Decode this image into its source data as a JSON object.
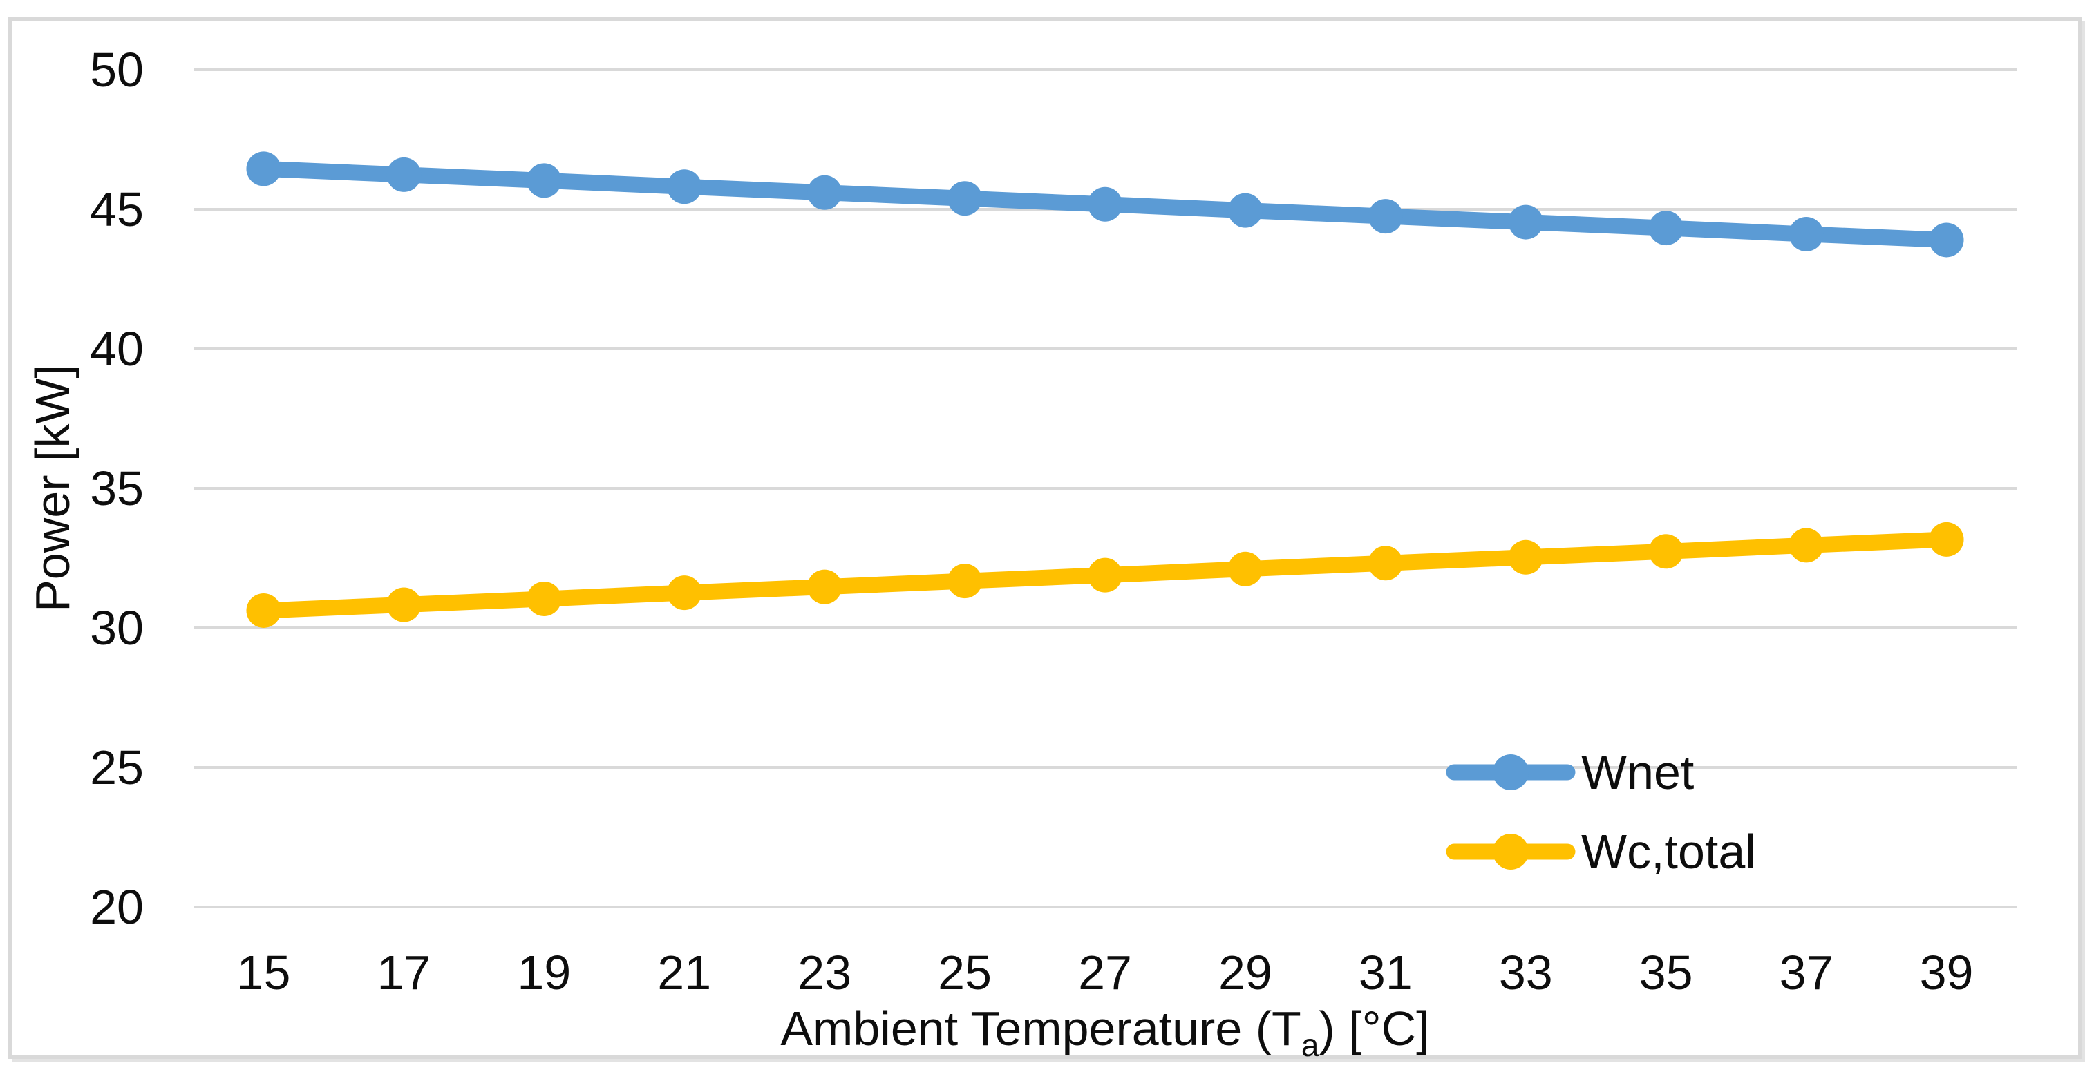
{
  "chart_data": {
    "type": "line",
    "title": "",
    "xlabel": "Ambient Temperature (Ta) [°C]",
    "xlabel_parts": {
      "pre": "Ambient Temperature (T",
      "sub": "a",
      "post": ") [°C]"
    },
    "ylabel": "Power [kW]",
    "x_categories": [
      "15",
      "17",
      "19",
      "21",
      "23",
      "25",
      "27",
      "29",
      "31",
      "33",
      "35",
      "37",
      "39"
    ],
    "y_ticks": [
      50,
      45,
      40,
      35,
      30,
      25,
      20
    ],
    "ylim": [
      20,
      50
    ],
    "grid": "horizontal-only",
    "legend_position": "inside-bottom-right",
    "marker": "circle",
    "series": [
      {
        "name": "Wnet",
        "color": "#5B9BD5",
        "values": [
          46.45,
          46.24,
          46.03,
          45.81,
          45.6,
          45.39,
          45.18,
          44.96,
          44.75,
          44.54,
          44.33,
          44.11,
          43.9
        ]
      },
      {
        "name": "Wc,total",
        "color": "#FFC000",
        "values": [
          30.62,
          30.83,
          31.04,
          31.26,
          31.47,
          31.68,
          31.89,
          32.11,
          32.32,
          32.53,
          32.74,
          32.96,
          33.17
        ]
      }
    ],
    "colors": {
      "gridline": "#D9D9D9",
      "frame_border": "#D9D9D9",
      "text": "#0D0D0D",
      "background": "#FFFFFF"
    }
  }
}
